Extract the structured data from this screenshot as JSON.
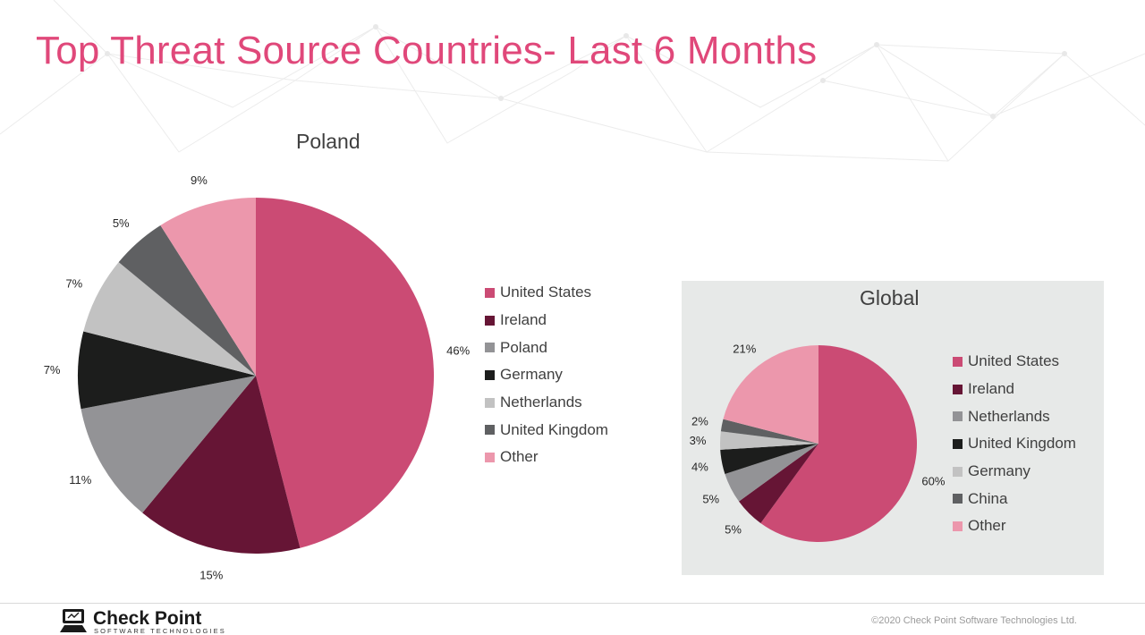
{
  "slide": {
    "title": "Top Threat Source Countries- Last 6 Months",
    "title_color": "#e0487a",
    "copyright": "©2020 Check Point Software Technologies Ltd.",
    "logo": {
      "name": "Check Point",
      "tagline": "SOFTWARE TECHNOLOGIES"
    }
  },
  "chart_data": [
    {
      "type": "pie",
      "title": "Poland",
      "legend_position": "right",
      "slices": [
        {
          "label": "United States",
          "value": 46,
          "display": "46%",
          "color": "#cb4b74"
        },
        {
          "label": "Ireland",
          "value": 15,
          "display": "15%",
          "color": "#661535"
        },
        {
          "label": "Poland",
          "value": 11,
          "display": "11%",
          "color": "#939396"
        },
        {
          "label": "Germany",
          "value": 7,
          "display": "7%",
          "color": "#1c1d1c"
        },
        {
          "label": "Netherlands",
          "value": 7,
          "display": "7%",
          "color": "#c2c2c2"
        },
        {
          "label": "United Kingdom",
          "value": 5,
          "display": "5%",
          "color": "#5f6062"
        },
        {
          "label": "Other",
          "value": 9,
          "display": "9%",
          "color": "#ec97ac"
        }
      ]
    },
    {
      "type": "pie",
      "title": "Global",
      "legend_position": "right",
      "slices": [
        {
          "label": "United States",
          "value": 60,
          "display": "60%",
          "color": "#cb4b74"
        },
        {
          "label": "Ireland",
          "value": 5,
          "display": "5%",
          "color": "#661535"
        },
        {
          "label": "Netherlands",
          "value": 5,
          "display": "5%",
          "color": "#939396"
        },
        {
          "label": "United Kingdom",
          "value": 4,
          "display": "4%",
          "color": "#1c1d1c"
        },
        {
          "label": "Germany",
          "value": 3,
          "display": "3%",
          "color": "#c2c2c2"
        },
        {
          "label": "China",
          "value": 2,
          "display": "2%",
          "color": "#5f6062"
        },
        {
          "label": "Other",
          "value": 21,
          "display": "21%",
          "color": "#ec97ac"
        }
      ]
    }
  ]
}
